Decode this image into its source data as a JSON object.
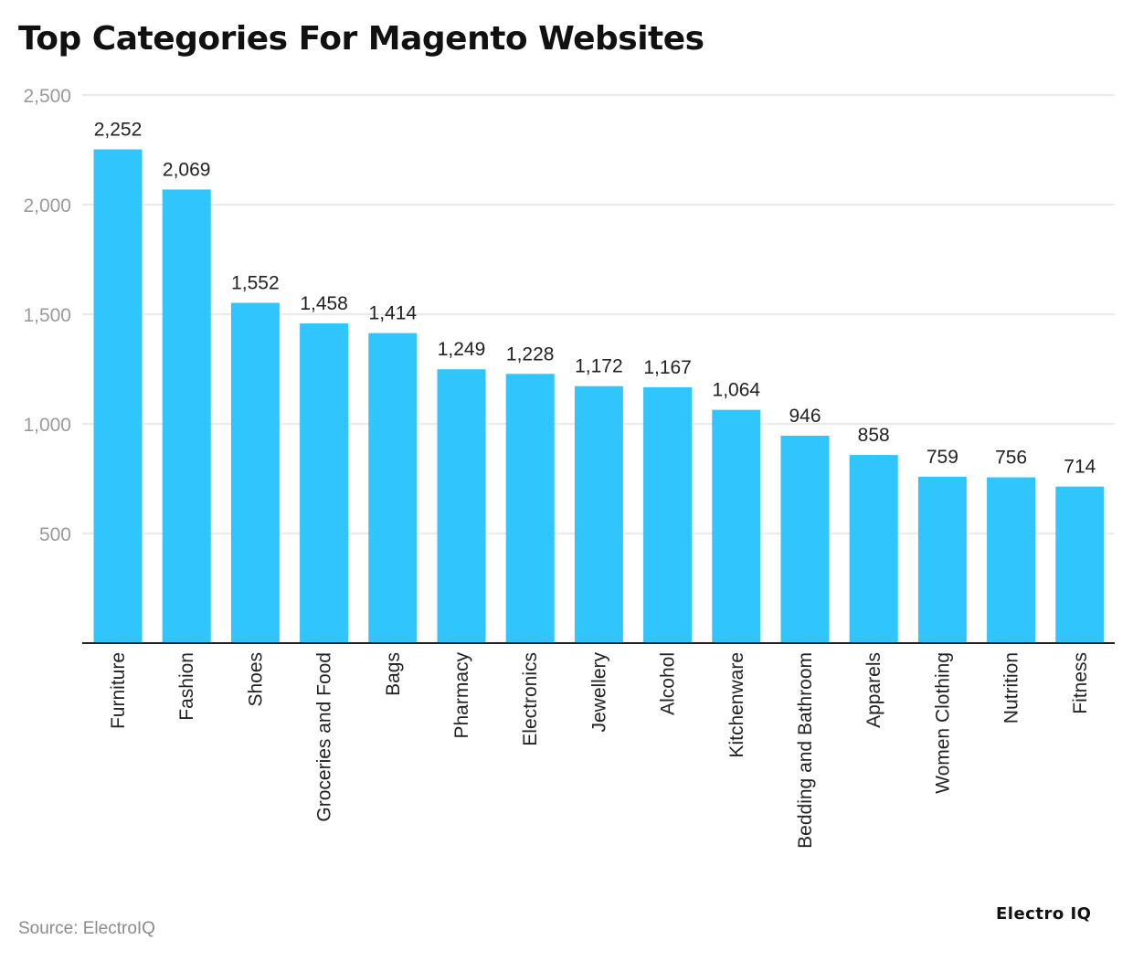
{
  "chart_data": {
    "type": "bar",
    "title": "Top Categories For Magento Websites",
    "xlabel": "",
    "ylabel": "",
    "categories": [
      "Furniture",
      "Fashion",
      "Shoes",
      "Groceries and Food",
      "Bags",
      "Pharmacy",
      "Electronics",
      "Jewellery",
      "Alcohol",
      "Kitchenware",
      "Bedding and Bathroom",
      "Apparels",
      "Women Clothing",
      "Nutrition",
      "Fitness"
    ],
    "values": [
      2252,
      2069,
      1552,
      1458,
      1414,
      1249,
      1228,
      1172,
      1167,
      1064,
      946,
      858,
      759,
      756,
      714
    ],
    "value_labels": [
      "2,252",
      "2,069",
      "1,552",
      "1,458",
      "1,414",
      "1,249",
      "1,228",
      "1,172",
      "1,167",
      "1,064",
      "946",
      "858",
      "759",
      "756",
      "714"
    ],
    "ylim": [
      0,
      2500
    ],
    "yticks": [
      500,
      1000,
      1500,
      2000,
      2500
    ],
    "ytick_labels": [
      "500",
      "1,000",
      "1,500",
      "2,000",
      "2,500"
    ],
    "grid": true,
    "legend": "none",
    "bar_color": "#30c5fd",
    "grid_color": "#e3e3e3",
    "axis_color": "#222222"
  },
  "footer": {
    "source": "Source: ElectroIQ",
    "brand": "Electro IQ"
  }
}
